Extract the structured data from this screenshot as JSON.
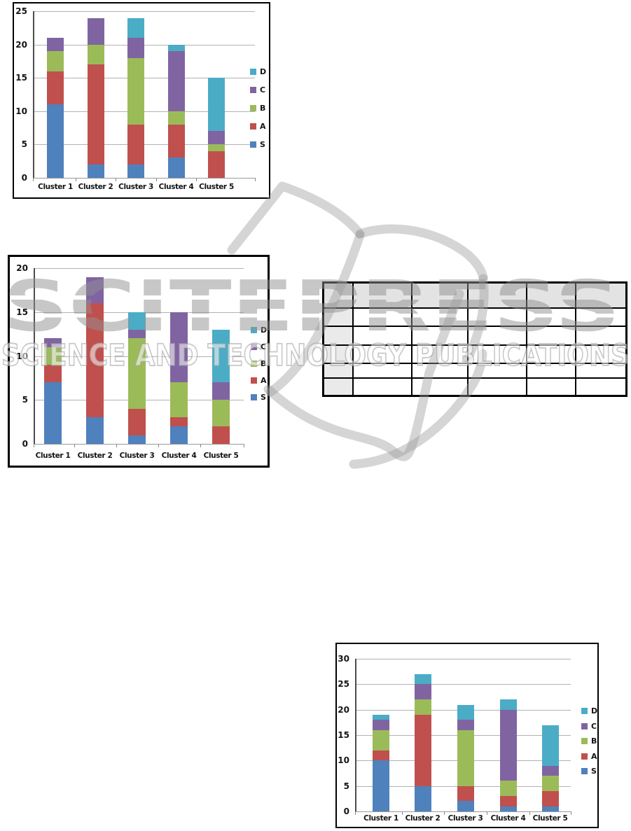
{
  "page": {
    "background": "#ffffff"
  },
  "watermark": {
    "title": "SCITEPRESS",
    "subtitle": "SCIENCE AND TECHNOLOGY PUBLICATIONS",
    "logo": "open-book-logo",
    "color": "#c9c9c9"
  },
  "series_colors": {
    "S": "#4f81bd",
    "A": "#c0504d",
    "B": "#9bbb59",
    "C": "#8064a2",
    "D": "#4bacc6"
  },
  "chart_data": [
    {
      "type": "bar",
      "stacked": true,
      "title": "",
      "xlabel": "",
      "ylabel": "",
      "grid": true,
      "legend_position": "right",
      "legend": [
        "D",
        "C",
        "B",
        "A",
        "S"
      ],
      "categories": [
        "Cluster 1",
        "Cluster 2",
        "Cluster 3",
        "Cluster 4",
        "Cluster 5"
      ],
      "series": [
        {
          "name": "S",
          "values": [
            11,
            2,
            2,
            3,
            0
          ]
        },
        {
          "name": "A",
          "values": [
            5,
            15,
            6,
            5,
            4
          ]
        },
        {
          "name": "B",
          "values": [
            3,
            3,
            10,
            2,
            1
          ]
        },
        {
          "name": "C",
          "values": [
            2,
            4,
            3,
            9,
            2
          ]
        },
        {
          "name": "D",
          "values": [
            0,
            0,
            3,
            1,
            8
          ]
        }
      ],
      "totals": [
        21,
        24,
        24,
        20,
        15
      ],
      "ylim": [
        0,
        25
      ],
      "yticks": [
        0,
        5,
        10,
        15,
        20,
        25
      ]
    },
    {
      "type": "bar",
      "stacked": true,
      "title": "",
      "xlabel": "",
      "ylabel": "",
      "grid": true,
      "legend_position": "right",
      "legend": [
        "D",
        "C",
        "B",
        "A",
        "S"
      ],
      "categories": [
        "Cluster 1",
        "Cluster 2",
        "Cluster 3",
        "Cluster 4",
        "Cluster 5"
      ],
      "series": [
        {
          "name": "S",
          "values": [
            7,
            3,
            1,
            2,
            0
          ]
        },
        {
          "name": "A",
          "values": [
            2,
            13,
            3,
            1,
            2
          ]
        },
        {
          "name": "B",
          "values": [
            2,
            0,
            8,
            4,
            3
          ]
        },
        {
          "name": "C",
          "values": [
            1,
            3,
            1,
            8,
            2
          ]
        },
        {
          "name": "D",
          "values": [
            0,
            0,
            2,
            0,
            6
          ]
        }
      ],
      "totals": [
        12,
        19,
        15,
        15,
        13
      ],
      "ylim": [
        0,
        20
      ],
      "yticks": [
        0,
        5,
        10,
        15,
        20
      ]
    },
    {
      "type": "bar",
      "stacked": true,
      "title": "",
      "xlabel": "",
      "ylabel": "",
      "grid": true,
      "legend_position": "right",
      "legend": [
        "D",
        "C",
        "B",
        "A",
        "S"
      ],
      "categories": [
        "Cluster 1",
        "Cluster 2",
        "Cluster 3",
        "Cluster 4",
        "Cluster 5"
      ],
      "series": [
        {
          "name": "S",
          "values": [
            10,
            5,
            2,
            1,
            1
          ]
        },
        {
          "name": "A",
          "values": [
            2,
            14,
            3,
            2,
            3
          ]
        },
        {
          "name": "B",
          "values": [
            4,
            3,
            11,
            3,
            3
          ]
        },
        {
          "name": "C",
          "values": [
            2,
            3,
            2,
            14,
            2
          ]
        },
        {
          "name": "D",
          "values": [
            1,
            2,
            3,
            2,
            8
          ]
        }
      ],
      "totals": [
        19,
        27,
        21,
        22,
        17
      ],
      "ylim": [
        0,
        30
      ],
      "yticks": [
        0,
        5,
        10,
        15,
        20,
        25,
        30
      ]
    }
  ],
  "table": {
    "columns": 6,
    "header_row": [
      "",
      "",
      "",
      "",
      "",
      ""
    ],
    "rows": [
      [
        "",
        "",
        "",
        "",
        "",
        ""
      ],
      [
        "",
        "",
        "",
        "",
        "",
        ""
      ],
      [
        "",
        "",
        "",
        "",
        "",
        ""
      ],
      [
        "",
        "",
        "",
        "",
        "",
        ""
      ],
      [
        "",
        "",
        "",
        "",
        "",
        ""
      ]
    ]
  }
}
